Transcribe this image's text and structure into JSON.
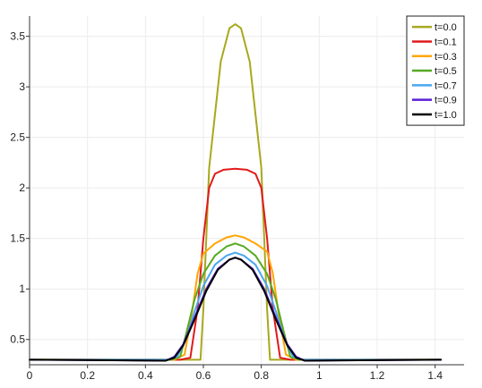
{
  "chart_data": {
    "type": "line",
    "title": "",
    "xlabel": "",
    "ylabel": "",
    "xlim": [
      0,
      1.5
    ],
    "ylim": [
      0.25,
      3.7
    ],
    "x_ticks": [
      0,
      0.2,
      0.4,
      0.6,
      0.8,
      1,
      1.2,
      1.4
    ],
    "x_tick_labels": [
      "0",
      "0.2",
      "0.4",
      "0.6",
      "0.8",
      "1",
      "1.2",
      "1.4"
    ],
    "y_ticks": [
      0.5,
      1,
      1.5,
      2,
      2.5,
      3,
      3.5
    ],
    "y_tick_labels": [
      "0.5",
      "1",
      "1.5",
      "2",
      "2.5",
      "3",
      "3.5"
    ],
    "grid": true,
    "legend_position": "top-right",
    "series": [
      {
        "name": "t=0.0",
        "color": "#a8a81e",
        "points": [
          [
            0,
            0.3
          ],
          [
            0.56,
            0.3
          ],
          [
            0.59,
            0.3
          ],
          [
            0.6,
            0.8
          ],
          [
            0.62,
            2.2
          ],
          [
            0.66,
            3.25
          ],
          [
            0.69,
            3.58
          ],
          [
            0.71,
            3.62
          ],
          [
            0.73,
            3.58
          ],
          [
            0.76,
            3.25
          ],
          [
            0.8,
            2.2
          ],
          [
            0.82,
            0.8
          ],
          [
            0.83,
            0.3
          ],
          [
            1.42,
            0.3
          ]
        ]
      },
      {
        "name": "t=0.1",
        "color": "#e01a1a",
        "points": [
          [
            0,
            0.3
          ],
          [
            0.52,
            0.3
          ],
          [
            0.555,
            0.32
          ],
          [
            0.58,
            0.8
          ],
          [
            0.6,
            1.5
          ],
          [
            0.62,
            2.0
          ],
          [
            0.64,
            2.14
          ],
          [
            0.67,
            2.18
          ],
          [
            0.71,
            2.19
          ],
          [
            0.75,
            2.18
          ],
          [
            0.78,
            2.14
          ],
          [
            0.8,
            2.0
          ],
          [
            0.82,
            1.5
          ],
          [
            0.84,
            0.8
          ],
          [
            0.865,
            0.32
          ],
          [
            0.9,
            0.3
          ],
          [
            1.42,
            0.3
          ]
        ]
      },
      {
        "name": "t=0.3",
        "color": "#ffa500",
        "points": [
          [
            0,
            0.3
          ],
          [
            0.5,
            0.3
          ],
          [
            0.535,
            0.35
          ],
          [
            0.56,
            0.75
          ],
          [
            0.58,
            1.15
          ],
          [
            0.6,
            1.35
          ],
          [
            0.64,
            1.45
          ],
          [
            0.68,
            1.51
          ],
          [
            0.71,
            1.53
          ],
          [
            0.74,
            1.51
          ],
          [
            0.78,
            1.45
          ],
          [
            0.82,
            1.37
          ],
          [
            0.84,
            1.15
          ],
          [
            0.86,
            0.75
          ],
          [
            0.885,
            0.35
          ],
          [
            0.92,
            0.3
          ],
          [
            1.42,
            0.3
          ]
        ]
      },
      {
        "name": "t=0.5",
        "color": "#55aa22",
        "points": [
          [
            0,
            0.3
          ],
          [
            0.49,
            0.3
          ],
          [
            0.52,
            0.33
          ],
          [
            0.54,
            0.55
          ],
          [
            0.57,
            0.9
          ],
          [
            0.6,
            1.15
          ],
          [
            0.64,
            1.33
          ],
          [
            0.68,
            1.42
          ],
          [
            0.71,
            1.45
          ],
          [
            0.74,
            1.42
          ],
          [
            0.78,
            1.33
          ],
          [
            0.82,
            1.15
          ],
          [
            0.85,
            0.9
          ],
          [
            0.88,
            0.55
          ],
          [
            0.9,
            0.33
          ],
          [
            0.93,
            0.3
          ],
          [
            1.42,
            0.3
          ]
        ]
      },
      {
        "name": "t=0.7",
        "color": "#4aa7ef",
        "points": [
          [
            0,
            0.3
          ],
          [
            0.48,
            0.3
          ],
          [
            0.51,
            0.33
          ],
          [
            0.54,
            0.5
          ],
          [
            0.57,
            0.78
          ],
          [
            0.6,
            1.03
          ],
          [
            0.64,
            1.24
          ],
          [
            0.68,
            1.33
          ],
          [
            0.71,
            1.36
          ],
          [
            0.74,
            1.33
          ],
          [
            0.78,
            1.24
          ],
          [
            0.82,
            1.03
          ],
          [
            0.85,
            0.78
          ],
          [
            0.88,
            0.5
          ],
          [
            0.91,
            0.33
          ],
          [
            0.94,
            0.3
          ],
          [
            1.42,
            0.3
          ]
        ]
      },
      {
        "name": "t=0.9",
        "color": "#5b1fd6",
        "points": [
          [
            0,
            0.3
          ],
          [
            0.47,
            0.29
          ],
          [
            0.5,
            0.33
          ],
          [
            0.53,
            0.45
          ],
          [
            0.57,
            0.72
          ],
          [
            0.61,
            1.0
          ],
          [
            0.65,
            1.2
          ],
          [
            0.69,
            1.29
          ],
          [
            0.71,
            1.31
          ],
          [
            0.73,
            1.29
          ],
          [
            0.77,
            1.2
          ],
          [
            0.81,
            1.0
          ],
          [
            0.85,
            0.72
          ],
          [
            0.89,
            0.45
          ],
          [
            0.92,
            0.33
          ],
          [
            0.95,
            0.29
          ],
          [
            1.42,
            0.3
          ]
        ]
      },
      {
        "name": "t=1.0",
        "color": "#000000",
        "points": [
          [
            0,
            0.3
          ],
          [
            0.47,
            0.29
          ],
          [
            0.5,
            0.32
          ],
          [
            0.53,
            0.44
          ],
          [
            0.57,
            0.7
          ],
          [
            0.61,
            0.98
          ],
          [
            0.65,
            1.19
          ],
          [
            0.69,
            1.29
          ],
          [
            0.71,
            1.31
          ],
          [
            0.73,
            1.29
          ],
          [
            0.77,
            1.19
          ],
          [
            0.81,
            0.98
          ],
          [
            0.85,
            0.7
          ],
          [
            0.89,
            0.44
          ],
          [
            0.92,
            0.32
          ],
          [
            0.95,
            0.29
          ],
          [
            1.42,
            0.3
          ]
        ]
      }
    ]
  }
}
